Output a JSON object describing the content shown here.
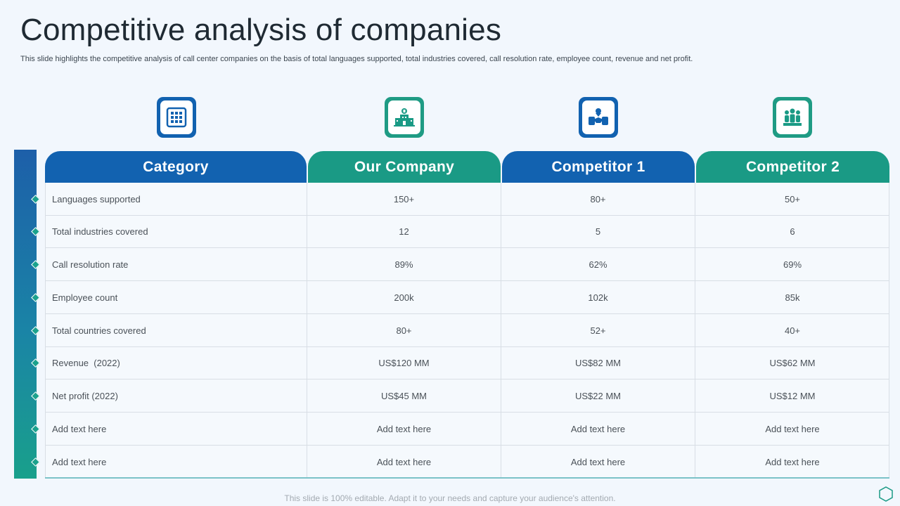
{
  "title": "Competitive analysis of companies",
  "subtitle": "This slide highlights the competitive analysis of call center companies on the basis of total languages supported, total industries covered, call resolution rate, employee count, revenue and net profit.",
  "icons": [
    "grid-icon",
    "hospital-building-icon",
    "handshake-award-icon",
    "team-group-icon"
  ],
  "colors": {
    "blue": "#1262b0",
    "teal": "#1a9a85",
    "background": "#f2f7fd"
  },
  "table": {
    "headers": [
      "Category",
      "Our Company",
      "Competitor 1",
      "Competitor 2"
    ],
    "rows": [
      [
        "Languages supported",
        "150+",
        "80+",
        "50+"
      ],
      [
        "Total industries covered",
        "12",
        "5",
        "6"
      ],
      [
        "Call resolution rate",
        "89%",
        "62%",
        "69%"
      ],
      [
        "Employee count",
        "200k",
        "102k",
        "85k"
      ],
      [
        "Total countries covered",
        "80+",
        "52+",
        "40+"
      ],
      [
        "Revenue  (2022)",
        "US$120 MM",
        "US$82 MM",
        "US$62 MM"
      ],
      [
        "Net profit (2022)",
        "US$45 MM",
        "US$22 MM",
        "US$12 MM"
      ],
      [
        "Add text here",
        "Add text here",
        "Add text here",
        "Add text here"
      ],
      [
        "Add text here",
        "Add text here",
        "Add text here",
        "Add text here"
      ]
    ]
  },
  "footer": "This slide is 100% editable. Adapt it to your needs and capture your audience's attention."
}
